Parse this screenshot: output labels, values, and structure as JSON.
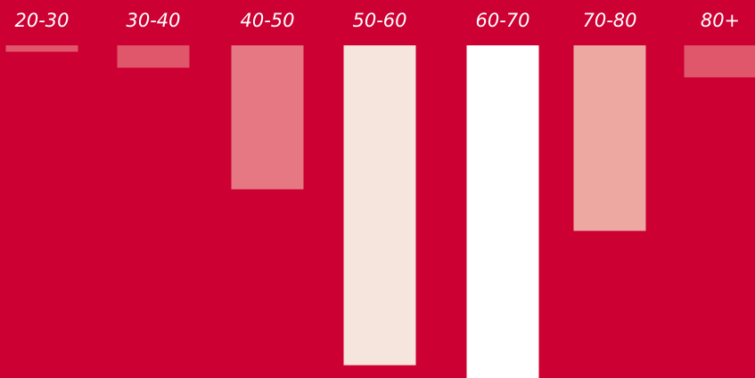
{
  "chart_data": {
    "type": "bar",
    "categories": [
      "20-30",
      "30-40",
      "40-50",
      "50-60",
      "60-70",
      "70-80",
      "80+"
    ],
    "values": [
      2,
      7,
      45,
      100,
      104,
      58,
      10
    ],
    "ylim": [
      0,
      104
    ],
    "orientation": "downward",
    "grid": false,
    "legend": "none",
    "background_color": "#cc0033",
    "label_color": "#ffffff",
    "bar_colors": [
      "#e0566a",
      "#e0566a",
      "#e57882",
      "#f5e5dc",
      "#ffffff",
      "#eda8a2",
      "#e0566a"
    ]
  }
}
